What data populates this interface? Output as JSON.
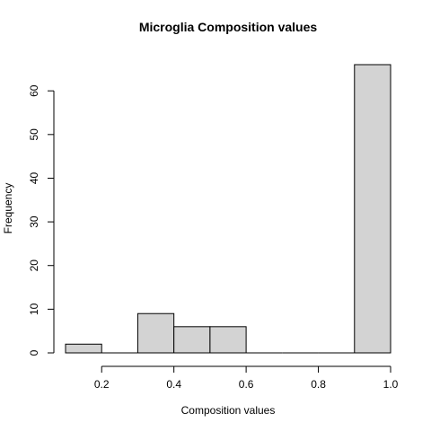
{
  "chart_data": {
    "type": "bar",
    "title": "Microglia Composition values",
    "xlabel": "Composition values",
    "ylabel": "Frequency",
    "bins": [
      {
        "from": 0.1,
        "to": 0.2,
        "count": 2
      },
      {
        "from": 0.2,
        "to": 0.3,
        "count": 0
      },
      {
        "from": 0.3,
        "to": 0.4,
        "count": 9
      },
      {
        "from": 0.4,
        "to": 0.5,
        "count": 6
      },
      {
        "from": 0.5,
        "to": 0.6,
        "count": 6
      },
      {
        "from": 0.6,
        "to": 0.7,
        "count": 0
      },
      {
        "from": 0.7,
        "to": 0.8,
        "count": 0
      },
      {
        "from": 0.8,
        "to": 0.9,
        "count": 0
      },
      {
        "from": 0.9,
        "to": 1.0,
        "count": 66
      }
    ],
    "xlim": [
      0.1,
      1.0
    ],
    "ylim": [
      0,
      66
    ],
    "x_ticks": [
      {
        "value": 0.2,
        "label": "0.2"
      },
      {
        "value": 0.4,
        "label": "0.4"
      },
      {
        "value": 0.6,
        "label": "0.6"
      },
      {
        "value": 0.8,
        "label": "0.8"
      },
      {
        "value": 1.0,
        "label": "1.0"
      }
    ],
    "y_ticks": [
      {
        "value": 0,
        "label": "0"
      },
      {
        "value": 10,
        "label": "10"
      },
      {
        "value": 20,
        "label": "20"
      },
      {
        "value": 30,
        "label": "30"
      },
      {
        "value": 40,
        "label": "40"
      },
      {
        "value": 50,
        "label": "50"
      },
      {
        "value": 60,
        "label": "60"
      }
    ],
    "grid": false,
    "legend": "none",
    "bar_color": "#d3d3d3",
    "edge_color": "#000000"
  }
}
